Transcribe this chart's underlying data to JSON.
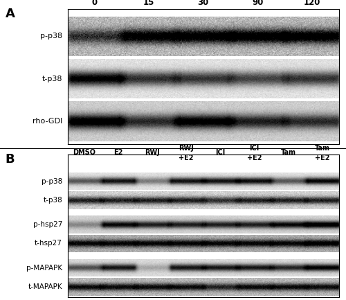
{
  "fig_width": 5.0,
  "fig_height": 4.33,
  "dpi": 100,
  "panel_A": {
    "label": "A",
    "time_labels": [
      "0",
      "15",
      "30",
      "90",
      "120"
    ],
    "row_labels": [
      "p-p38",
      "t-p38",
      "rho-GDI"
    ],
    "band_intensities": {
      "p-p38": [
        0.55,
        0.85,
        0.88,
        0.9,
        0.88
      ],
      "t-p38": [
        0.92,
        0.7,
        0.68,
        0.62,
        0.68
      ],
      "rho-GDI": [
        0.92,
        0.65,
        0.88,
        0.7,
        0.65
      ]
    },
    "bg_levels": {
      "p-p38": 0.72,
      "t-p38": 0.88,
      "rho-GDI": 0.8
    }
  },
  "panel_B": {
    "label": "B",
    "col_labels": [
      "DMSO",
      "E2",
      "RWJ",
      "RWJ\n+E2",
      "ICI",
      "ICI\n+E2",
      "Tam",
      "Tam\n+E2"
    ],
    "row_labels": [
      "p-p38",
      "t-p38",
      "p-hsp27",
      "t-hsp27",
      "p-MAPAPK",
      "t-MAPAPK"
    ],
    "band_intensities": {
      "p-p38": [
        0.55,
        0.82,
        0.4,
        0.82,
        0.82,
        0.85,
        0.55,
        0.88
      ],
      "t-p38": [
        0.72,
        0.72,
        0.72,
        0.72,
        0.65,
        0.72,
        0.72,
        0.72
      ],
      "p-hsp27": [
        0.3,
        0.82,
        0.72,
        0.72,
        0.72,
        0.72,
        0.82,
        0.95
      ],
      "t-hsp27": [
        0.72,
        0.72,
        0.72,
        0.72,
        0.72,
        0.72,
        0.72,
        0.82
      ],
      "p-MAPAPK": [
        0.55,
        0.78,
        0.2,
        0.78,
        0.78,
        0.78,
        0.72,
        0.88
      ],
      "t-MAPAPK": [
        0.72,
        0.72,
        0.72,
        0.72,
        0.6,
        0.72,
        0.72,
        0.72
      ]
    },
    "bg_levels": {
      "p-p38": 0.88,
      "t-p38": 0.82,
      "p-hsp27": 0.82,
      "t-hsp27": 0.68,
      "p-MAPAPK": 0.85,
      "t-MAPAPK": 0.72
    }
  }
}
